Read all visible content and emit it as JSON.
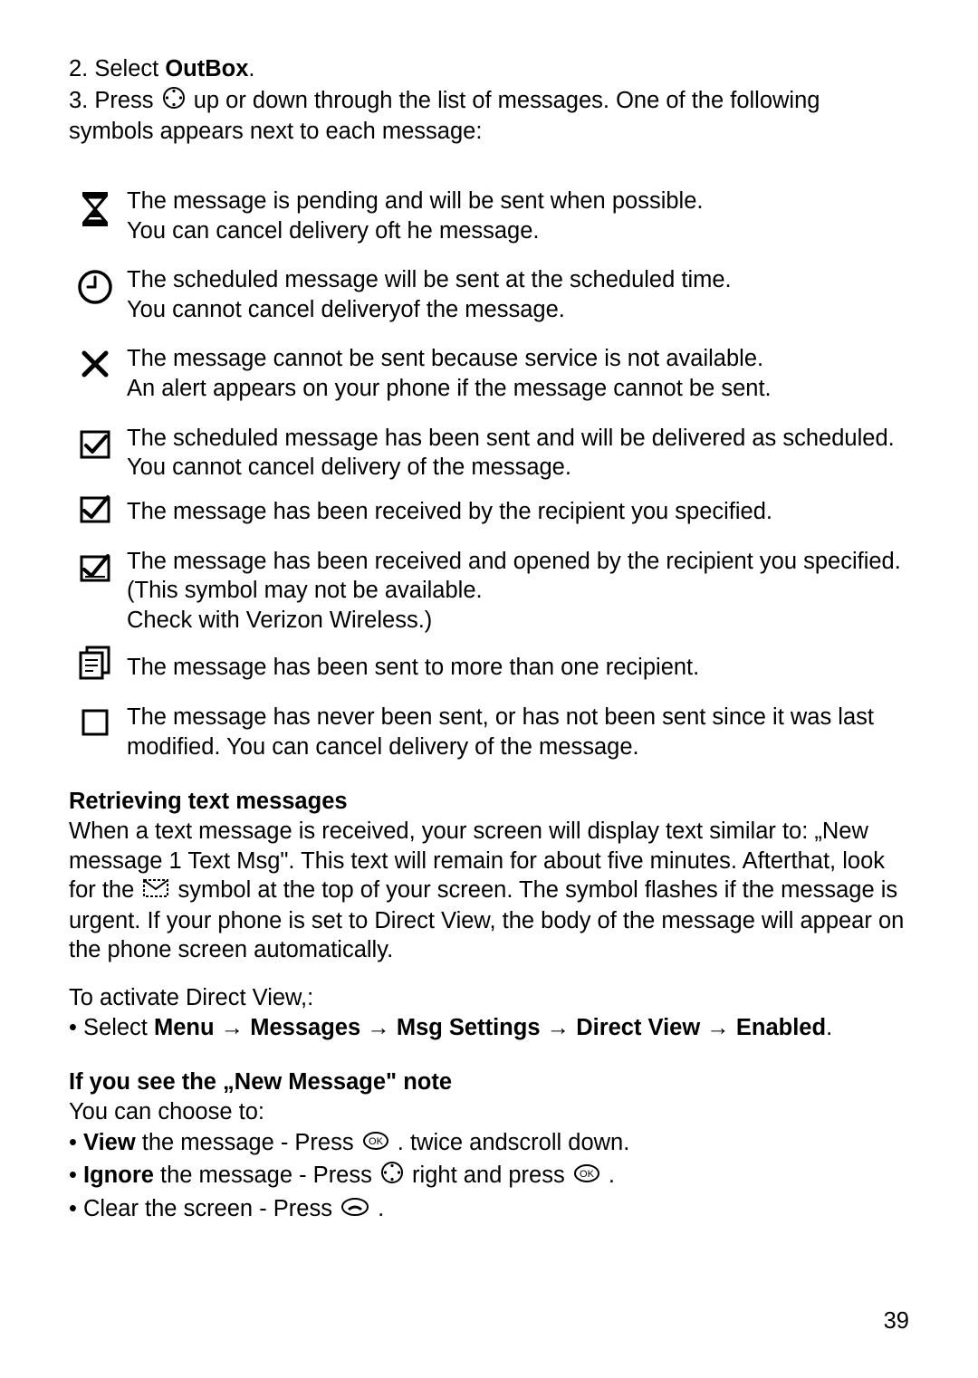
{
  "steps": {
    "s2_prefix": "2. Select ",
    "s2_bold": "OutBox",
    "s2_suffix": ".",
    "s3_prefix": "3. Press ",
    "s3_suffix": " up or down through the list of messages. One of the following symbols appears next to each message:"
  },
  "icons": [
    {
      "desc": "The message is pending and will be sent when possible.\nYou can cancel delivery oft he message."
    },
    {
      "desc": "The scheduled message will be sent at the scheduled time.\nYou cannot cancel deliveryof the message."
    },
    {
      "desc": "The message cannot be sent because service is not available.\nAn alert appears on your phone if the message cannot be sent."
    },
    {
      "desc": "The scheduled message has been sent and will be delivered as scheduled. You cannot cancel delivery of the message."
    },
    {
      "desc": "The message has been received by the recipient you specified."
    },
    {
      "desc": "The message has been received and opened by the recipient you specified. (This symbol may not be available.\nCheck with Verizon Wireless.)"
    },
    {
      "desc": "The message has been sent to more than one recipient."
    },
    {
      "desc": "The message has never been sent, or has not been sent since it was last  modified. You can cancel delivery of the message."
    }
  ],
  "retrieving": {
    "heading": "Retrieving text messages",
    "p1a": "When a text message is received, your screen will display text similar to: „New message 1 Text Msg\". This text will remain for about five minutes. Afterthat, look for the ",
    "p1b": " symbol at the top of your screen. The symbol flashes if the message is urgent. If your phone is set to Direct View, the body of the message will appear on the phone screen automatically.",
    "p2": "To activate Direct View,:",
    "nav_prefix": "• Select ",
    "nav_items": [
      "Menu",
      "Messages",
      "Msg Settings",
      "Direct View",
      "Enabled"
    ],
    "nav_arrow": " → ",
    "nav_suffix": "."
  },
  "new_message": {
    "heading": "If you see the „New Message\" note",
    "intro": "You can choose to:",
    "view_prefix": "• ",
    "view_bold": "View",
    "view_mid": " the message - Press ",
    "view_suffix": " . twice andscroll down.",
    "ignore_prefix": "• ",
    "ignore_bold": "Ignore",
    "ignore_mid": " the message - Press ",
    "ignore_mid2": " right and press ",
    "ignore_suffix": " .",
    "clear_prefix": "• Clear the screen - Press",
    "clear_suffix": " ."
  },
  "page_number": "39",
  "colors": {
    "text": "#000000",
    "bg": "#ffffff"
  }
}
